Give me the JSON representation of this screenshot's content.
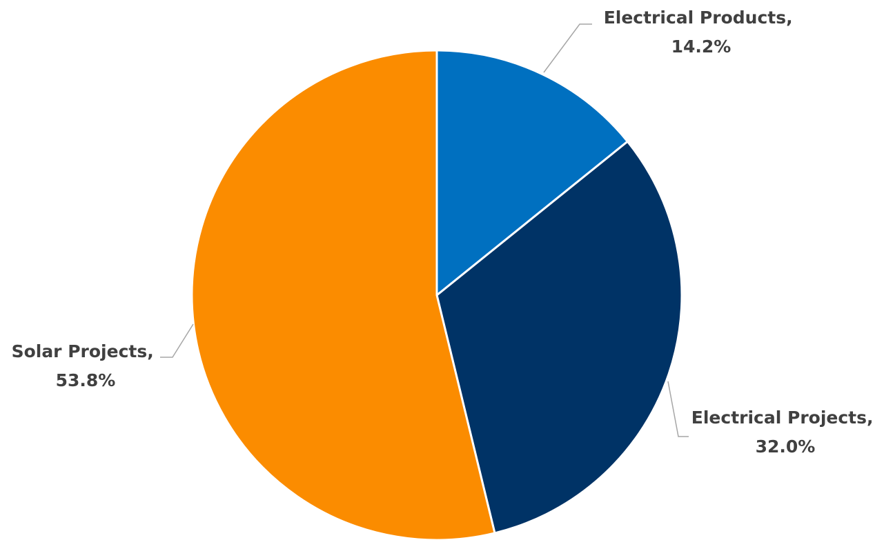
{
  "chart_data": {
    "type": "pie",
    "title": "",
    "start_angle_deg": 0,
    "direction": "clockwise",
    "slices": [
      {
        "name": "Electrical Products",
        "value": 14.2,
        "name_label": "Electrical Products,",
        "value_label": "14.2%",
        "color": "#0070c0"
      },
      {
        "name": "Electrical Projects",
        "value": 32.0,
        "name_label": "Electrical Projects,",
        "value_label": "32.0%",
        "color": "#003366"
      },
      {
        "name": "Solar Projects",
        "value": 53.8,
        "name_label": "Solar Projects,",
        "value_label": "53.8%",
        "color": "#fb8c00"
      }
    ],
    "legend": "none",
    "data_labels": "outside-with-leader-lines"
  }
}
